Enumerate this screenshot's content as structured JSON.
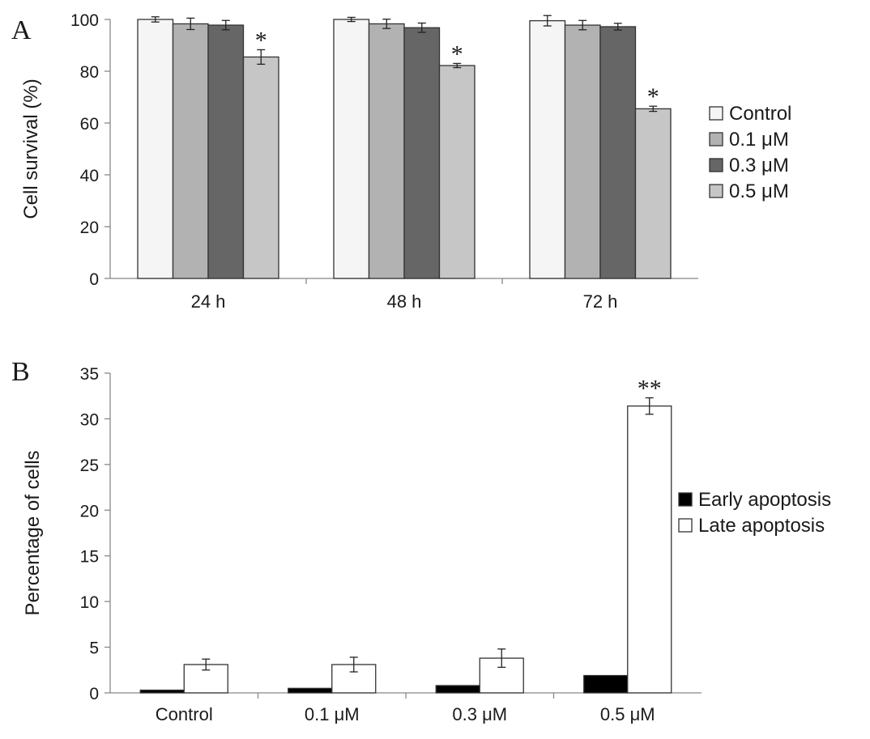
{
  "panels": {
    "a": {
      "letter": "A"
    },
    "b": {
      "letter": "B"
    }
  },
  "chart_data": [
    {
      "type": "bar",
      "panel": "A",
      "title": "",
      "xlabel": "",
      "ylabel": "Cell survival (%)",
      "ylim": [
        0,
        100
      ],
      "yticks": [
        "0",
        "20",
        "40",
        "60",
        "80",
        "100"
      ],
      "categories": [
        "24 h",
        "48 h",
        "72 h"
      ],
      "legend_position": "right",
      "grid": false,
      "series": [
        {
          "name": "Control",
          "color": "#f5f5f5",
          "values": [
            100,
            100,
            99.5
          ],
          "errors": [
            1.0,
            0.8,
            2.0
          ],
          "significance": [
            "",
            "",
            ""
          ]
        },
        {
          "name": "0.1 μM",
          "color": "#b2b2b2",
          "values": [
            98.3,
            98.3,
            97.8
          ],
          "errors": [
            2.2,
            1.8,
            1.8
          ],
          "significance": [
            "",
            "",
            ""
          ]
        },
        {
          "name": "0.3 μM",
          "color": "#666666",
          "values": [
            97.8,
            96.8,
            97.2
          ],
          "errors": [
            1.8,
            1.8,
            1.3
          ],
          "significance": [
            "",
            "",
            ""
          ]
        },
        {
          "name": "0.5 μM",
          "color": "#c6c6c6",
          "values": [
            85.5,
            82.2,
            65.5
          ],
          "errors": [
            2.8,
            0.8,
            1.0
          ],
          "significance": [
            "*",
            "*",
            "*"
          ]
        }
      ]
    },
    {
      "type": "bar",
      "panel": "B",
      "title": "",
      "xlabel": "",
      "ylabel": "Percentage of cells",
      "ylim": [
        0,
        35
      ],
      "yticks": [
        "0",
        "5",
        "10",
        "15",
        "20",
        "25",
        "30",
        "35"
      ],
      "categories": [
        "Control",
        "0.1 μM",
        "0.3 μM",
        "0.5 μM"
      ],
      "legend_position": "right",
      "grid": false,
      "series": [
        {
          "name": "Early apoptosis",
          "color": "#000000",
          "values": [
            0.3,
            0.5,
            0.8,
            1.9
          ],
          "errors": [
            0,
            0,
            0,
            0
          ],
          "significance": [
            "",
            "",
            "",
            ""
          ]
        },
        {
          "name": "Late apoptosis",
          "color": "#ffffff",
          "values": [
            3.1,
            3.1,
            3.8,
            31.4
          ],
          "errors": [
            0.6,
            0.8,
            1.0,
            0.9
          ],
          "significance": [
            "",
            "",
            "",
            "**"
          ]
        }
      ]
    }
  ]
}
